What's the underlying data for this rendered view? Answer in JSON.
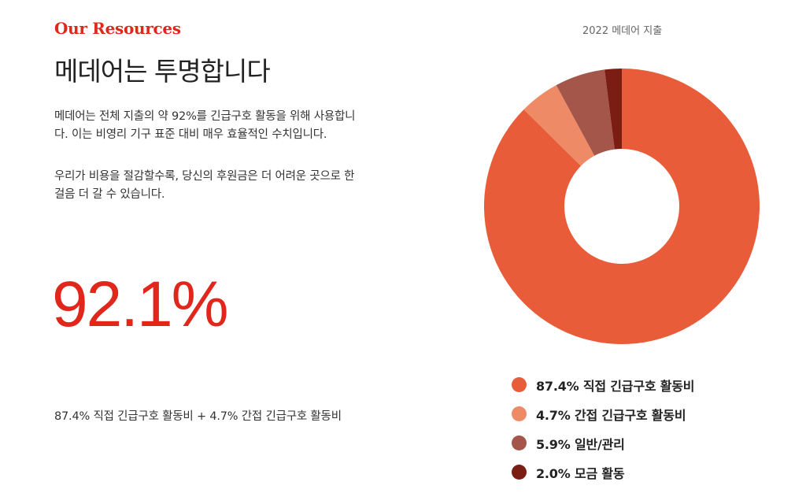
{
  "left": {
    "eyebrow": "Our Resources",
    "headline": "메데어는 투명합니다",
    "paragraphs": [
      "메데어는 전체 지출의 약 92%를 긴급구호 활동을 위해 사용합니다. 이는 비영리 기구 표준 대비 매우 효율적인 수치입니다.",
      "우리가 비용을 절감할수록, 당신의 후원금은 더 어려운 곳으로 한 걸음 더 갈 수 있습니다."
    ],
    "big_stat": "92.1%",
    "stat_note": "87.4% 직접 긴급구호 활동비 + 4.7% 간접 긴급구호 활동비"
  },
  "colors": {
    "accent": "#e1261c",
    "direct": "#e85c3a",
    "indirect": "#ef8a66",
    "admin": "#a4564a",
    "fundraising": "#7c1d14"
  },
  "chart_data": {
    "type": "pie",
    "variant": "donut",
    "title": "2022 메데어 지출",
    "categories": [
      "직접 긴급구호 활동비",
      "간접 긴급구호 활동비",
      "일반/관리",
      "모금 활동"
    ],
    "values": [
      87.4,
      4.7,
      5.9,
      2.0
    ],
    "unit": "%",
    "colors": [
      "#e85c3a",
      "#ef8a66",
      "#a4564a",
      "#7c1d14"
    ],
    "legend_labels": [
      "87.4% 직접 긴급구호 활동비",
      "4.7% 간접 긴급구호 활동비",
      "5.9% 일반/관리",
      "2.0% 모금 활동"
    ],
    "legend_position": "bottom"
  }
}
